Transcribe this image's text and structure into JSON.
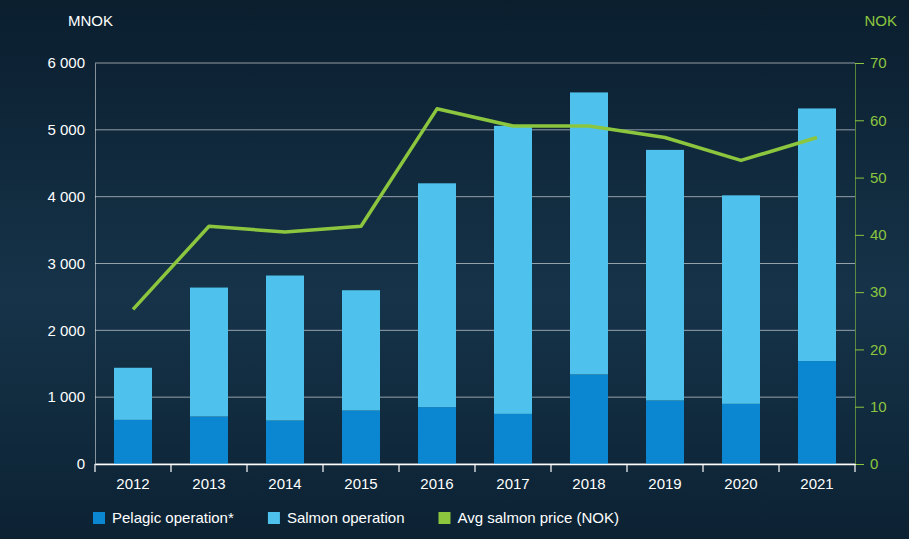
{
  "chart_data": {
    "type": "bar",
    "stacked": true,
    "y_label": "MNOK",
    "y2_label": "NOK",
    "categories": [
      "2012",
      "2013",
      "2014",
      "2015",
      "2016",
      "2017",
      "2018",
      "2019",
      "2020",
      "2021"
    ],
    "series": [
      {
        "name": "Pelagic operation*",
        "type": "bar",
        "color": "#0b87d1",
        "values": [
          660,
          710,
          650,
          800,
          850,
          750,
          1340,
          950,
          900,
          1540
        ]
      },
      {
        "name": "Salmon operation",
        "type": "bar",
        "color": "#4ec2ec",
        "values": [
          780,
          1930,
          2170,
          1800,
          3350,
          4310,
          4220,
          3750,
          3120,
          3780
        ]
      },
      {
        "name": "Avg salmon price (NOK)",
        "type": "line",
        "axis": "y2",
        "color": "#8cc63f",
        "values": [
          27,
          41.5,
          40.5,
          41.5,
          62,
          59,
          59,
          57,
          53,
          57
        ]
      }
    ],
    "ylim": [
      0,
      6000
    ],
    "yticks": [
      0,
      {
        "value": 1000,
        "label": "1 000"
      },
      {
        "value": 2000,
        "label": "2 000"
      },
      {
        "value": 3000,
        "label": "3 000"
      },
      {
        "value": 4000,
        "label": "4 000"
      },
      {
        "value": 5000,
        "label": "5 000"
      },
      {
        "value": 6000,
        "label": "6 000"
      }
    ],
    "y2lim": [
      0,
      70
    ],
    "y2ticks": [
      0,
      10,
      20,
      30,
      40,
      50,
      60,
      70
    ],
    "grid": true,
    "legend": "bottom-left"
  }
}
